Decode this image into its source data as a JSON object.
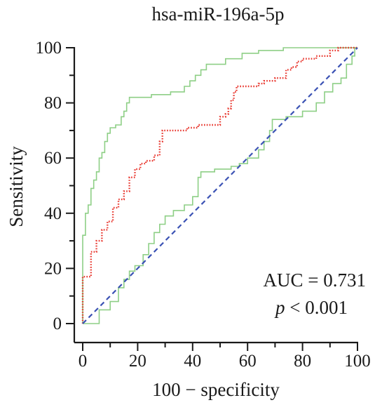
{
  "chart_data": {
    "type": "line",
    "title": "hsa-miR-196a-5p",
    "xlabel": "100 − specificity",
    "ylabel": "Sensitivity",
    "xlim": [
      0,
      100
    ],
    "ylim": [
      0,
      100
    ],
    "xticks": [
      "0",
      "20",
      "40",
      "60",
      "80",
      "100"
    ],
    "yticks": [
      "0",
      "20",
      "40",
      "60",
      "80",
      "100"
    ],
    "grid": false,
    "annotations": {
      "auc": "AUC = 0.731",
      "p_symbol": "p",
      "p_rest": " < 0.001"
    },
    "series": [
      {
        "role": "roc",
        "color": "#e8352c",
        "style": "dotted",
        "points": [
          [
            0,
            0
          ],
          [
            0,
            17
          ],
          [
            3,
            17
          ],
          [
            3,
            26
          ],
          [
            5,
            26
          ],
          [
            5,
            30
          ],
          [
            7,
            30
          ],
          [
            7,
            34
          ],
          [
            9,
            34
          ],
          [
            9,
            37
          ],
          [
            11,
            37
          ],
          [
            11,
            42
          ],
          [
            13,
            42
          ],
          [
            13,
            45
          ],
          [
            15,
            45
          ],
          [
            15,
            48
          ],
          [
            17,
            48
          ],
          [
            17,
            53
          ],
          [
            19,
            53
          ],
          [
            19,
            56
          ],
          [
            21,
            56
          ],
          [
            21,
            58
          ],
          [
            23,
            58
          ],
          [
            23,
            59
          ],
          [
            26,
            59
          ],
          [
            26,
            61
          ],
          [
            28,
            61
          ],
          [
            28,
            66
          ],
          [
            29,
            66
          ],
          [
            29,
            70
          ],
          [
            38,
            70
          ],
          [
            38,
            71
          ],
          [
            42,
            71
          ],
          [
            42,
            72
          ],
          [
            50,
            72
          ],
          [
            50,
            75
          ],
          [
            52,
            75
          ],
          [
            52,
            76
          ],
          [
            53,
            76
          ],
          [
            53,
            78
          ],
          [
            54,
            78
          ],
          [
            54,
            81
          ],
          [
            55,
            81
          ],
          [
            55,
            84
          ],
          [
            56,
            84
          ],
          [
            56,
            86
          ],
          [
            64,
            86
          ],
          [
            64,
            87
          ],
          [
            66,
            87
          ],
          [
            66,
            88
          ],
          [
            70,
            88
          ],
          [
            70,
            89
          ],
          [
            74,
            89
          ],
          [
            74,
            92
          ],
          [
            76,
            92
          ],
          [
            76,
            93
          ],
          [
            78,
            93
          ],
          [
            78,
            95
          ],
          [
            80,
            95
          ],
          [
            80,
            96
          ],
          [
            85,
            96
          ],
          [
            85,
            97
          ],
          [
            90,
            97
          ],
          [
            90,
            99
          ],
          [
            93,
            99
          ],
          [
            93,
            100
          ],
          [
            100,
            100
          ]
        ]
      },
      {
        "role": "ci-upper",
        "color": "#8ecf86",
        "style": "solid",
        "points": [
          [
            0,
            0
          ],
          [
            0,
            32
          ],
          [
            1,
            32
          ],
          [
            1,
            40
          ],
          [
            2,
            40
          ],
          [
            2,
            43
          ],
          [
            3,
            43
          ],
          [
            3,
            49
          ],
          [
            4,
            49
          ],
          [
            4,
            52
          ],
          [
            5,
            52
          ],
          [
            5,
            55
          ],
          [
            6,
            55
          ],
          [
            6,
            60
          ],
          [
            7,
            60
          ],
          [
            7,
            62
          ],
          [
            8,
            62
          ],
          [
            8,
            66
          ],
          [
            9,
            66
          ],
          [
            9,
            69
          ],
          [
            10,
            69
          ],
          [
            10,
            71
          ],
          [
            12,
            71
          ],
          [
            12,
            72
          ],
          [
            14,
            72
          ],
          [
            14,
            75
          ],
          [
            15,
            75
          ],
          [
            15,
            77
          ],
          [
            16,
            77
          ],
          [
            16,
            80
          ],
          [
            17,
            80
          ],
          [
            17,
            82
          ],
          [
            25,
            82
          ],
          [
            25,
            83
          ],
          [
            32,
            83
          ],
          [
            32,
            84
          ],
          [
            37,
            84
          ],
          [
            37,
            86
          ],
          [
            39,
            86
          ],
          [
            39,
            88
          ],
          [
            41,
            88
          ],
          [
            41,
            90
          ],
          [
            43,
            90
          ],
          [
            43,
            92
          ],
          [
            45,
            92
          ],
          [
            45,
            94
          ],
          [
            52,
            94
          ],
          [
            52,
            96
          ],
          [
            58,
            96
          ],
          [
            58,
            98
          ],
          [
            64,
            98
          ],
          [
            64,
            99
          ],
          [
            73,
            99
          ],
          [
            73,
            100
          ],
          [
            100,
            100
          ]
        ]
      },
      {
        "role": "ci-lower",
        "color": "#8ecf86",
        "style": "solid",
        "points": [
          [
            0,
            0
          ],
          [
            6,
            0
          ],
          [
            6,
            5
          ],
          [
            10,
            5
          ],
          [
            10,
            8
          ],
          [
            13,
            8
          ],
          [
            13,
            13
          ],
          [
            15,
            13
          ],
          [
            15,
            16
          ],
          [
            17,
            16
          ],
          [
            17,
            19
          ],
          [
            19,
            19
          ],
          [
            19,
            21
          ],
          [
            22,
            21
          ],
          [
            22,
            25
          ],
          [
            24,
            25
          ],
          [
            24,
            29
          ],
          [
            26,
            29
          ],
          [
            26,
            33
          ],
          [
            28,
            33
          ],
          [
            28,
            36
          ],
          [
            30,
            36
          ],
          [
            30,
            39
          ],
          [
            33,
            39
          ],
          [
            33,
            41
          ],
          [
            37,
            41
          ],
          [
            37,
            43
          ],
          [
            40,
            43
          ],
          [
            40,
            46
          ],
          [
            42,
            46
          ],
          [
            42,
            53
          ],
          [
            43,
            53
          ],
          [
            43,
            55
          ],
          [
            48,
            55
          ],
          [
            48,
            56
          ],
          [
            54,
            56
          ],
          [
            54,
            57
          ],
          [
            57,
            57
          ],
          [
            57,
            58
          ],
          [
            60,
            58
          ],
          [
            60,
            60
          ],
          [
            64,
            60
          ],
          [
            64,
            63
          ],
          [
            66,
            63
          ],
          [
            66,
            66
          ],
          [
            68,
            66
          ],
          [
            68,
            70
          ],
          [
            69,
            70
          ],
          [
            69,
            74
          ],
          [
            74,
            74
          ],
          [
            74,
            75
          ],
          [
            80,
            75
          ],
          [
            80,
            77
          ],
          [
            85,
            77
          ],
          [
            85,
            80
          ],
          [
            88,
            80
          ],
          [
            88,
            84
          ],
          [
            91,
            84
          ],
          [
            91,
            87
          ],
          [
            94,
            87
          ],
          [
            94,
            89
          ],
          [
            96,
            89
          ],
          [
            96,
            94
          ],
          [
            98,
            94
          ],
          [
            98,
            97
          ],
          [
            99,
            97
          ],
          [
            99,
            100
          ],
          [
            100,
            100
          ]
        ]
      },
      {
        "role": "reference",
        "color": "#3b52b4",
        "style": "dashed",
        "points": [
          [
            0,
            0
          ],
          [
            100,
            100
          ]
        ]
      }
    ]
  }
}
